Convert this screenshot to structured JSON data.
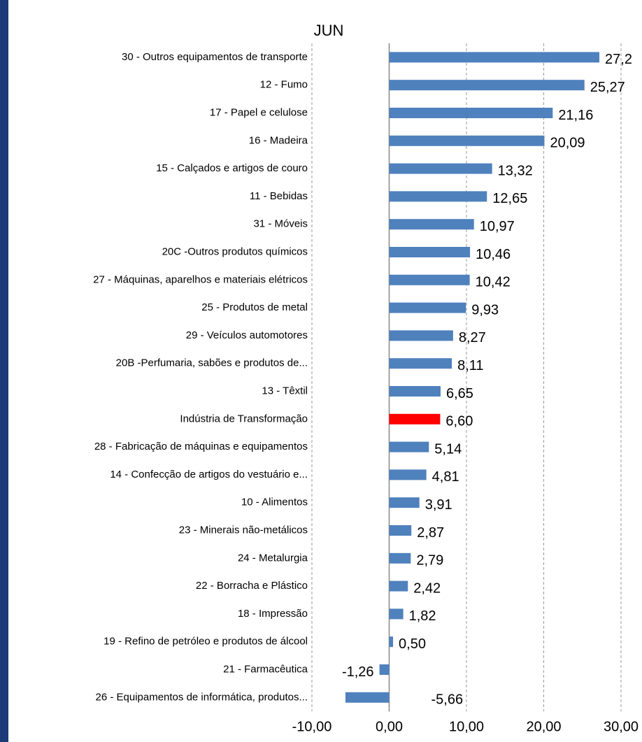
{
  "chart_data": {
    "type": "hbar",
    "title": "JUN",
    "categories": [
      "30 - Outros equipamentos de transporte",
      "12 - Fumo",
      "17 - Papel e celulose",
      "16 - Madeira",
      "15 - Calçados e artigos de couro",
      "11 - Bebidas",
      "31 - Móveis",
      "20C -Outros produtos químicos",
      "27 - Máquinas, aparelhos e materiais elétricos",
      "25 - Produtos de metal",
      "29 - Veículos automotores",
      "20B -Perfumaria, sabões e produtos de...",
      "13 - Têxtil",
      "Indústria de Transformação",
      "28 - Fabricação de máquinas e equipamentos",
      "14 - Confecção de artigos do vestuário e...",
      "10 - Alimentos",
      "23 - Minerais não-metálicos",
      "24 - Metalurgia",
      "22 - Borracha e Plástico",
      "18 - Impressão",
      "19 - Refino de petróleo e produtos de álcool",
      "21 - Farmacêutica",
      "26 - Equipamentos de informática, produtos..."
    ],
    "values": [
      27.2,
      25.27,
      21.16,
      20.09,
      13.32,
      12.65,
      10.97,
      10.46,
      10.42,
      9.93,
      8.27,
      8.11,
      6.65,
      6.6,
      5.14,
      4.81,
      3.91,
      2.87,
      2.79,
      2.42,
      1.82,
      0.5,
      -1.26,
      -5.66
    ],
    "value_labels": [
      "27,2",
      "25,27",
      "21,16",
      "20,09",
      "13,32",
      "12,65",
      "10,97",
      "10,46",
      "10,42",
      "9,93",
      "8,27",
      "8,11",
      "6,65",
      "6,60",
      "5,14",
      "4,81",
      "3,91",
      "2,87",
      "2,79",
      "2,42",
      "1,82",
      "0,50",
      "-1,26",
      "-5,66"
    ],
    "colors": [
      "#4f81bd",
      "#4f81bd",
      "#4f81bd",
      "#4f81bd",
      "#4f81bd",
      "#4f81bd",
      "#4f81bd",
      "#4f81bd",
      "#4f81bd",
      "#4f81bd",
      "#4f81bd",
      "#4f81bd",
      "#4f81bd",
      "#ff0000",
      "#4f81bd",
      "#4f81bd",
      "#4f81bd",
      "#4f81bd",
      "#4f81bd",
      "#4f81bd",
      "#4f81bd",
      "#4f81bd",
      "#4f81bd",
      "#4f81bd"
    ],
    "xlim": [
      -10,
      30
    ],
    "xticks": [
      {
        "value": -10,
        "label": "-10,00"
      },
      {
        "value": 0,
        "label": "0,00"
      },
      {
        "value": 10,
        "label": "10,00"
      },
      {
        "value": 20,
        "label": "20,00"
      },
      {
        "value": 30,
        "label": "30,00"
      }
    ],
    "grid": true
  }
}
